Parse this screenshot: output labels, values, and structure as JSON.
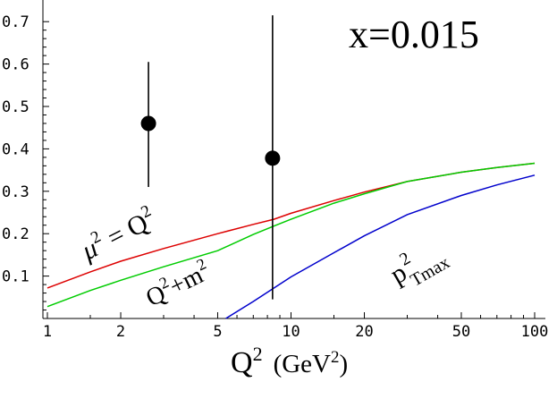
{
  "chart_data": {
    "type": "line",
    "x_scale": "log",
    "xlim": [
      1,
      100
    ],
    "ylim": [
      0,
      0.72
    ],
    "grid": false,
    "legend": "none",
    "x_ticks": [
      1,
      2,
      5,
      10,
      20,
      50,
      100
    ],
    "x_tick_labels": [
      "1",
      "2",
      "5",
      "10",
      "20",
      "50",
      "100"
    ],
    "y_ticks": [
      0.1,
      0.2,
      0.3,
      0.4,
      0.5,
      0.6,
      0.7
    ],
    "y_tick_labels": [
      "0.1",
      "0.2",
      "0.3",
      "0.4",
      "0.5",
      "0.6",
      "0.7"
    ],
    "xlabel": {
      "base": "Q",
      "sup": "2",
      "units_open": "(GeV",
      "units_sup": "2",
      "units_close": ")"
    },
    "annotation_title": "x=0.015",
    "series": [
      {
        "key": "mu2",
        "color": "#dd0000",
        "x": [
          1,
          1.5,
          2,
          3,
          5,
          7,
          8.5,
          10,
          15,
          20,
          30,
          50,
          70,
          100
        ],
        "y": [
          0.072,
          0.11,
          0.135,
          0.165,
          0.2,
          0.222,
          0.234,
          0.248,
          0.278,
          0.298,
          0.323,
          0.345,
          0.356,
          0.366
        ]
      },
      {
        "key": "qm2",
        "color": "#00cc00",
        "x": [
          1,
          1.5,
          2,
          3,
          5,
          7,
          8.5,
          10,
          15,
          20,
          30,
          50,
          70,
          100
        ],
        "y": [
          0.028,
          0.066,
          0.09,
          0.122,
          0.16,
          0.198,
          0.218,
          0.234,
          0.272,
          0.294,
          0.323,
          0.345,
          0.356,
          0.366
        ]
      },
      {
        "key": "pt2",
        "color": "#0000cc",
        "x": [
          5.4,
          7,
          10,
          15,
          20,
          30,
          50,
          70,
          100
        ],
        "y": [
          0.0,
          0.04,
          0.098,
          0.155,
          0.195,
          0.245,
          0.29,
          0.315,
          0.338
        ]
      }
    ],
    "points": [
      {
        "x": 2.6,
        "y": 0.46,
        "y_low": 0.31,
        "y_high": 0.605
      },
      {
        "x": 8.4,
        "y": 0.378,
        "y_low": 0.045,
        "y_high": 0.715
      }
    ],
    "curve_labels": {
      "mu2": {
        "base": "μ",
        "sup": "2",
        "rest": " = Q",
        "rest_sup": "2"
      },
      "qm2": {
        "base": "Q",
        "sup": "2",
        "rest": "+m",
        "rest_sup": "2"
      },
      "pt2": {
        "base": "p",
        "sup": "2",
        "sub": "Tmax"
      }
    }
  }
}
